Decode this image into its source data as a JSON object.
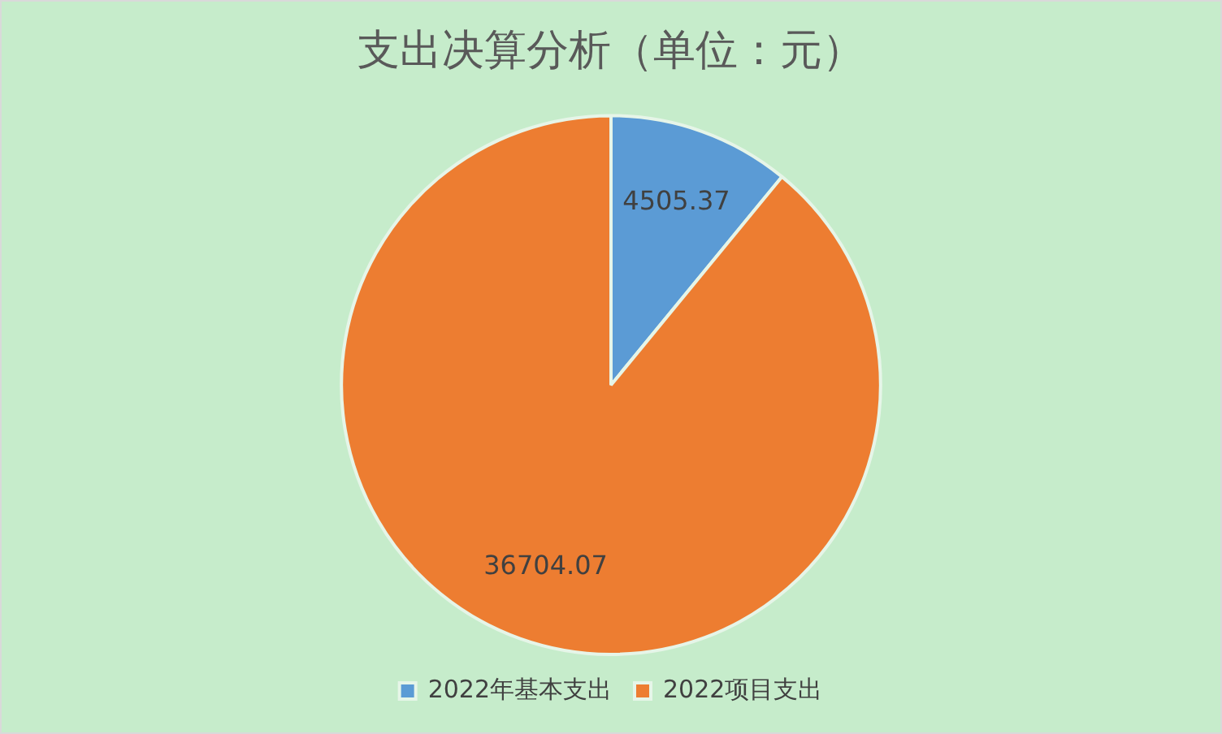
{
  "chart_data": {
    "type": "pie",
    "title": "支出决算分析（单位：元）",
    "categories": [
      "2022年基本支出",
      "2022项目支出"
    ],
    "values": [
      4505.37,
      36704.07
    ],
    "colors": [
      "#5b9bd5",
      "#ed7d31"
    ],
    "data_labels": true,
    "legend": "bottom"
  }
}
